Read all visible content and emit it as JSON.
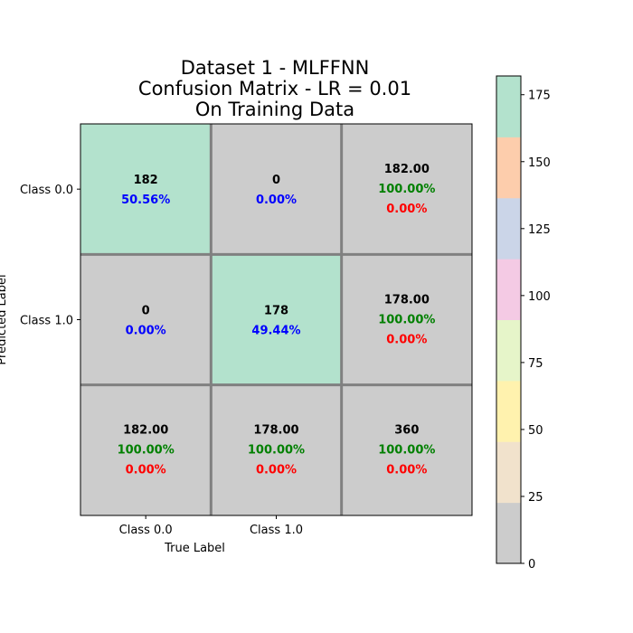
{
  "chart_data": {
    "type": "heatmap",
    "title_lines": [
      "Dataset 1 - MLFFNN",
      "Confusion Matrix - LR = 0.01",
      "On Training Data"
    ],
    "xlabel": "True Label",
    "ylabel": "Predicted Label",
    "x_tick_labels": [
      "Class 0.0",
      "Class 1.0"
    ],
    "y_tick_labels": [
      "Class 0.0",
      "Class 1.0"
    ],
    "cells": [
      [
        {
          "lines": [
            "182",
            "50.56%"
          ],
          "colors": [
            "#000000",
            "#0000ff"
          ],
          "value": 182,
          "highlight": true
        },
        {
          "lines": [
            "0",
            "0.00%"
          ],
          "colors": [
            "#000000",
            "#0000ff"
          ],
          "value": 0,
          "highlight": false
        },
        {
          "lines": [
            "182.00",
            "100.00%",
            "0.00%"
          ],
          "colors": [
            "#000000",
            "#008000",
            "#ff0000"
          ],
          "value": 182,
          "highlight": false
        }
      ],
      [
        {
          "lines": [
            "0",
            "0.00%"
          ],
          "colors": [
            "#000000",
            "#0000ff"
          ],
          "value": 0,
          "highlight": false
        },
        {
          "lines": [
            "178",
            "49.44%"
          ],
          "colors": [
            "#000000",
            "#0000ff"
          ],
          "value": 178,
          "highlight": true
        },
        {
          "lines": [
            "178.00",
            "100.00%",
            "0.00%"
          ],
          "colors": [
            "#000000",
            "#008000",
            "#ff0000"
          ],
          "value": 178,
          "highlight": false
        }
      ],
      [
        {
          "lines": [
            "182.00",
            "100.00%",
            "0.00%"
          ],
          "colors": [
            "#000000",
            "#008000",
            "#ff0000"
          ],
          "value": 182,
          "highlight": false
        },
        {
          "lines": [
            "178.00",
            "100.00%",
            "0.00%"
          ],
          "colors": [
            "#000000",
            "#008000",
            "#ff0000"
          ],
          "value": 178,
          "highlight": false
        },
        {
          "lines": [
            "360",
            "100.00%",
            "0.00%"
          ],
          "colors": [
            "#000000",
            "#008000",
            "#ff0000"
          ],
          "value": 360,
          "highlight": false
        }
      ]
    ],
    "cell_colors": {
      "highlight": "#b3e2cd",
      "default": "#cccccc",
      "grid": "#808080"
    },
    "colorbar": {
      "range": [
        0,
        182
      ],
      "ticks": [
        0,
        25,
        50,
        75,
        100,
        125,
        150,
        175
      ],
      "colors": [
        "#cccccc",
        "#f1e2cc",
        "#fff2ae",
        "#e6f5c9",
        "#f4cae4",
        "#cbd5e8",
        "#fdcdac",
        "#b3e2cd"
      ]
    }
  }
}
